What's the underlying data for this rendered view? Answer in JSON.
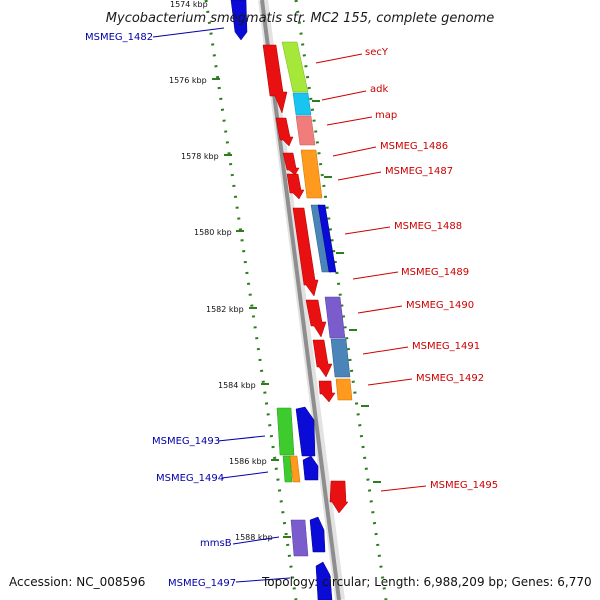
{
  "title": "Mycobacterium smegmatis str. MC2 155, complete genome",
  "footer": {
    "accession": "Accession: NC_008596",
    "info": "Topology: circular; Length: 6,988,209 bp; Genes: 6,770"
  },
  "colors": {
    "forward_label": "#cc0000",
    "reverse_label": "#0000aa",
    "tick": "#2e7d1f",
    "backbone": "#9a9a9a"
  },
  "ticks": [
    {
      "label": "1574 kbp"
    },
    {
      "label": "1576 kbp"
    },
    {
      "label": "1578 kbp"
    },
    {
      "label": "1580 kbp"
    },
    {
      "label": "1582 kbp"
    },
    {
      "label": "1584 kbp"
    },
    {
      "label": "1586 kbp"
    },
    {
      "label": "1588 kbp"
    }
  ],
  "forward_genes": [
    {
      "name": "secY"
    },
    {
      "name": "adk"
    },
    {
      "name": "map"
    },
    {
      "name": "MSMEG_1486"
    },
    {
      "name": "MSMEG_1487"
    },
    {
      "name": "MSMEG_1488"
    },
    {
      "name": "MSMEG_1489"
    },
    {
      "name": "MSMEG_1490"
    },
    {
      "name": "MSMEG_1491"
    },
    {
      "name": "MSMEG_1492"
    },
    {
      "name": "MSMEG_1495"
    }
  ],
  "reverse_genes": [
    {
      "name": "MSMEG_1482"
    },
    {
      "name": "MSMEG_1493"
    },
    {
      "name": "MSMEG_1494"
    },
    {
      "name": "mmsB"
    },
    {
      "name": "MSMEG_1497"
    }
  ]
}
